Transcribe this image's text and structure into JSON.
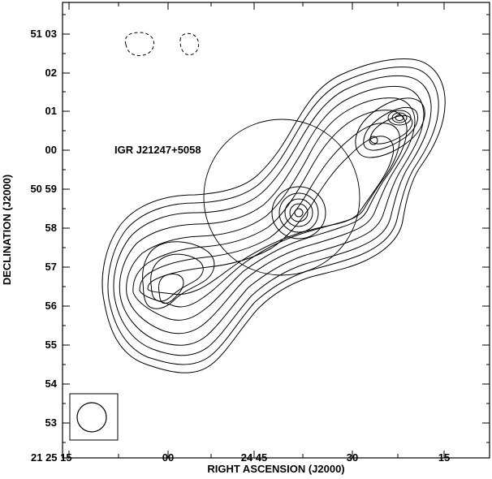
{
  "figure": {
    "x_axis_label": "RIGHT ASCENSION (J2000)",
    "y_axis_label": "DECLINATION (J2000)",
    "x_tick_labels": [
      "21 25 15",
      "00",
      "24 45",
      "30",
      "15"
    ],
    "y_tick_labels": [
      "51 03",
      "02",
      "01",
      "00",
      "50 59",
      "58",
      "57",
      "56",
      "55",
      "54",
      "53"
    ],
    "source_label": "IGR J21247+5058"
  }
}
